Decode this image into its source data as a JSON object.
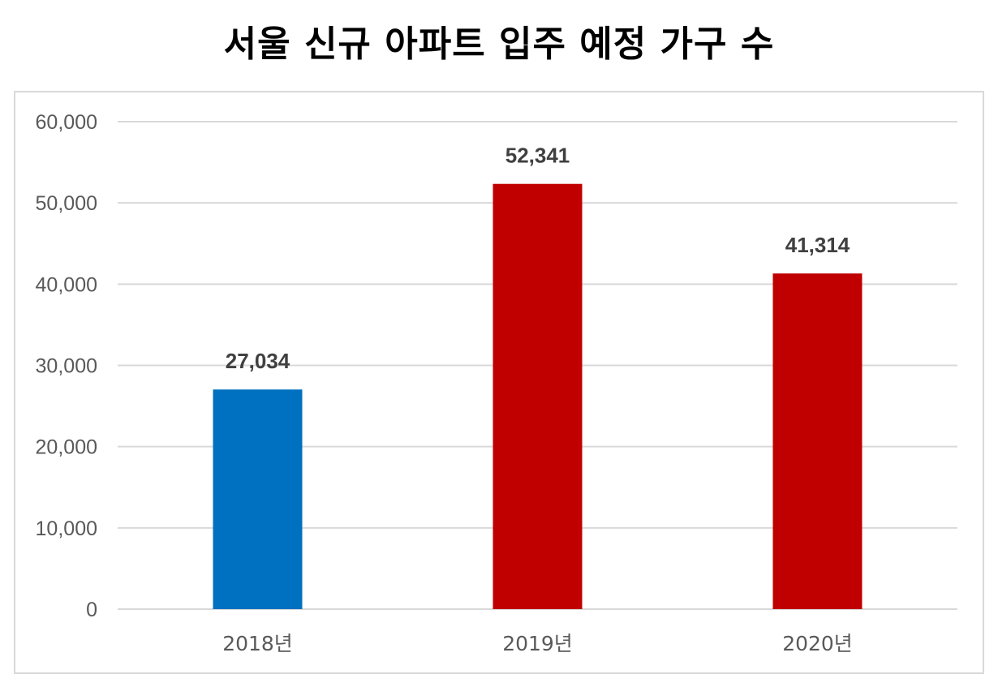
{
  "title": "서울 신규 아파트 입주 예정 가구 수",
  "chart_data": {
    "type": "bar",
    "title": "서울 신규 아파트 입주 예정 가구 수",
    "xlabel": "",
    "ylabel": "",
    "categories": [
      "2018년",
      "2019년",
      "2020년"
    ],
    "values": [
      27034,
      52341,
      41314
    ],
    "value_labels": [
      "27,034",
      "52,341",
      "41,314"
    ],
    "bar_colors": [
      "#0070c0",
      "#c00000",
      "#c00000"
    ],
    "ylim": [
      0,
      60000
    ],
    "y_ticks": [
      0,
      10000,
      20000,
      30000,
      40000,
      50000,
      60000
    ],
    "y_tick_labels": [
      "0",
      "10,000",
      "20,000",
      "30,000",
      "40,000",
      "50,000",
      "60,000"
    ],
    "grid": true,
    "legend": "none"
  }
}
